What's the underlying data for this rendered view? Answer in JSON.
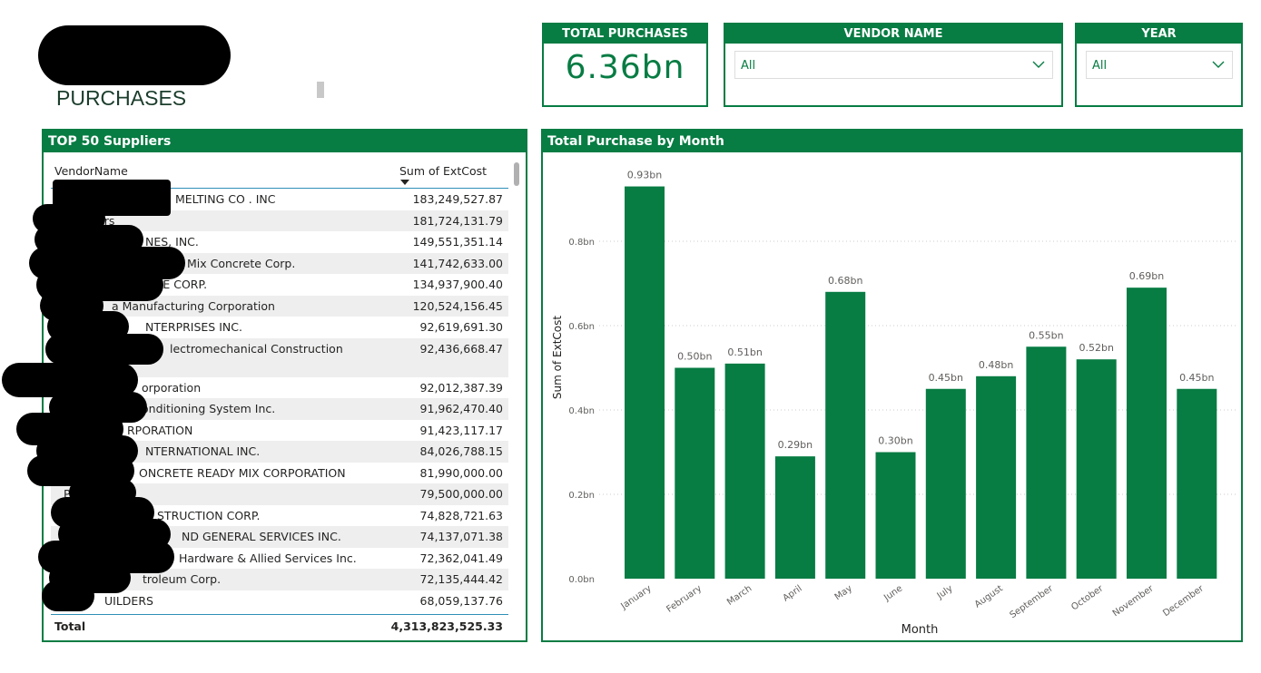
{
  "page_title": "PURCHASES",
  "kpi": {
    "label": "TOTAL PURCHASES",
    "value": "6.36bn"
  },
  "vendor_slicer": {
    "label": "VENDOR NAME",
    "selected": "All",
    "icon": "chevron-down-icon"
  },
  "year_slicer": {
    "label": "YEAR",
    "selected": "All",
    "icon": "chevron-down-icon"
  },
  "colors": {
    "accent": "#077c43"
  },
  "table": {
    "title": "TOP 50 Suppliers",
    "columns": [
      "VendorName",
      "Sum of ExtCost"
    ],
    "sort": "descending by Sum of ExtCost",
    "rows": [
      {
        "name": "MELTING CO . INC",
        "value": "183,249,527.87"
      },
      {
        "name": "ers",
        "value": "181,724,131.79"
      },
      {
        "name": "NES, INC.",
        "value": "149,551,351.14"
      },
      {
        "name": "Mix Concrete Corp.",
        "value": "141,742,633.00"
      },
      {
        "name": "NE CORP.",
        "value": "134,937,900.40"
      },
      {
        "name": "a Manufacturing Corporation",
        "value": "120,524,156.45"
      },
      {
        "name": "NTERPRISES INC.",
        "value": "92,619,691.30"
      },
      {
        "name": "lectromechanical Construction",
        "value": "92,436,668.47"
      },
      {
        "name": "orporation",
        "value": "92,012,387.39"
      },
      {
        "name": "onditioning System Inc.",
        "value": "91,962,470.40"
      },
      {
        "name": "RPORATION",
        "value": "91,423,117.17"
      },
      {
        "name": "NTERNATIONAL INC.",
        "value": "84,026,788.15"
      },
      {
        "name": "ONCRETE READY MIX CORPORATION",
        "value": "81,990,000.00"
      },
      {
        "name": "PA",
        "value": "79,500,000.00"
      },
      {
        "name": "STRUCTION CORP.",
        "value": "74,828,721.63"
      },
      {
        "name": "ND GENERAL SERVICES INC.",
        "value": "74,137,071.38"
      },
      {
        "name": "Hardware & Allied Services Inc.",
        "value": "72,362,041.49"
      },
      {
        "name": "troleum Corp.",
        "value": "72,135,444.42"
      },
      {
        "name": "UILDERS",
        "value": "68,059,137.76"
      }
    ],
    "total_label": "Total",
    "total_value": "4,313,823,525.33"
  },
  "chart_data": {
    "type": "bar",
    "title": "Total Purchase by Month",
    "xlabel": "Month",
    "ylabel": "Sum of ExtCost",
    "categories": [
      "January",
      "February",
      "March",
      "April",
      "May",
      "June",
      "July",
      "August",
      "September",
      "October",
      "November",
      "December"
    ],
    "values": [
      0.93,
      0.5,
      0.51,
      0.29,
      0.68,
      0.3,
      0.45,
      0.48,
      0.55,
      0.52,
      0.69,
      0.45
    ],
    "data_labels": [
      "0.93bn",
      "0.50bn",
      "0.51bn",
      "0.29bn",
      "0.68bn",
      "0.30bn",
      "0.45bn",
      "0.48bn",
      "0.55bn",
      "0.52bn",
      "0.69bn",
      "0.45bn"
    ],
    "yticks": [
      "0.0bn",
      "0.2bn",
      "0.4bn",
      "0.6bn",
      "0.8bn"
    ],
    "ylim": [
      0,
      0.8
    ],
    "grid": true,
    "unit": "bn"
  }
}
